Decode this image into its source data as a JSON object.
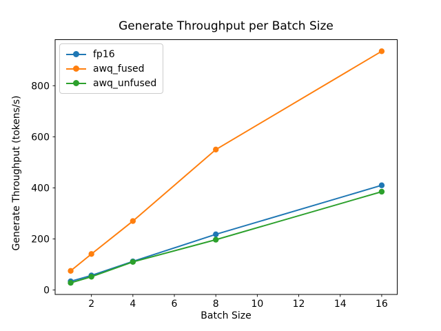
{
  "chart_data": {
    "type": "line",
    "title": "Generate Throughput per Batch Size",
    "xlabel": "Batch Size",
    "ylabel": "Generate Throughput (tokens/s)",
    "x": [
      1,
      2,
      4,
      8,
      16
    ],
    "series": [
      {
        "name": "fp16",
        "color": "#1f77b4",
        "values": [
          34,
          57,
          112,
          218,
          410
        ]
      },
      {
        "name": "awq_fused",
        "color": "#ff7f0e",
        "values": [
          75,
          141,
          270,
          550,
          935
        ]
      },
      {
        "name": "awq_unfused",
        "color": "#2ca02c",
        "values": [
          28,
          52,
          110,
          197,
          385
        ]
      }
    ],
    "xticks": [
      2,
      4,
      6,
      8,
      10,
      12,
      14,
      16
    ],
    "yticks": [
      0,
      200,
      400,
      600,
      800
    ],
    "xlim": [
      0.25,
      16.75
    ],
    "ylim": [
      -17.4,
      980.4
    ],
    "grid": false,
    "legend_position": "upper left",
    "marker": "circle",
    "axis_color": "#000000",
    "background_color": "#ffffff"
  }
}
